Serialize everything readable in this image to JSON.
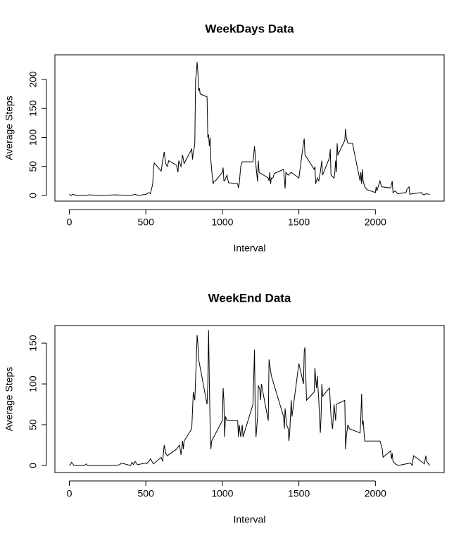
{
  "chart_data": [
    {
      "type": "line",
      "title": "WeekDays Data",
      "x_label": "Interval",
      "y_label": "Average Steps",
      "color": "#000000",
      "x": [
        0,
        10,
        25,
        45,
        100,
        130,
        200,
        300,
        400,
        430,
        450,
        500,
        520,
        530,
        545,
        550,
        555,
        600,
        610,
        620,
        625,
        630,
        640,
        650,
        700,
        710,
        715,
        730,
        740,
        750,
        800,
        805,
        810,
        815,
        820,
        825,
        830,
        835,
        840,
        845,
        850,
        855,
        900,
        905,
        910,
        915,
        920,
        925,
        930,
        935,
        940,
        945,
        955,
        1000,
        1005,
        1010,
        1015,
        1030,
        1040,
        1100,
        1105,
        1110,
        1120,
        1130,
        1200,
        1205,
        1210,
        1215,
        1220,
        1230,
        1235,
        1240,
        1300,
        1305,
        1310,
        1315,
        1320,
        1330,
        1340,
        1400,
        1405,
        1410,
        1415,
        1430,
        1450,
        1500,
        1530,
        1535,
        1540,
        1600,
        1605,
        1610,
        1620,
        1630,
        1640,
        1650,
        1655,
        1700,
        1705,
        1710,
        1730,
        1735,
        1740,
        1745,
        1750,
        1755,
        1800,
        1805,
        1810,
        1820,
        1850,
        1900,
        1905,
        1910,
        1915,
        1920,
        1930,
        1945,
        2000,
        2005,
        2010,
        2030,
        2040,
        2100,
        2110,
        2115,
        2130,
        2145,
        2200,
        2205,
        2220,
        2225,
        2240,
        2300,
        2310,
        2320,
        2330,
        2355
      ],
      "values": [
        2,
        0,
        2,
        0,
        0,
        1,
        0,
        1,
        0,
        2,
        0,
        2,
        5,
        3,
        20,
        45,
        56,
        42,
        60,
        75,
        64,
        55,
        50,
        60,
        52,
        40,
        60,
        50,
        70,
        55,
        80,
        62,
        75,
        80,
        90,
        200,
        210,
        230,
        213,
        180,
        185,
        175,
        170,
        100,
        105,
        85,
        100,
        60,
        45,
        30,
        20,
        25,
        25,
        40,
        48,
        25,
        25,
        35,
        22,
        20,
        13,
        20,
        50,
        58,
        58,
        70,
        85,
        70,
        50,
        24,
        60,
        40,
        30,
        25,
        40,
        20,
        30,
        30,
        38,
        45,
        30,
        12,
        40,
        35,
        40,
        30,
        90,
        98,
        70,
        45,
        50,
        20,
        30,
        25,
        40,
        60,
        35,
        65,
        80,
        35,
        30,
        40,
        60,
        40,
        90,
        70,
        95,
        115,
        100,
        90,
        90,
        25,
        40,
        20,
        45,
        25,
        15,
        10,
        5,
        15,
        8,
        25,
        15,
        13,
        25,
        5,
        8,
        3,
        5,
        10,
        15,
        2,
        3,
        5,
        2,
        1,
        3,
        2
      ],
      "xlim": [
        -94.2,
        2449.2
      ],
      "ylim": [
        -9.7,
        242.4
      ],
      "xticks": [
        0,
        500,
        1000,
        1500,
        2000
      ],
      "yticks": [
        0,
        50,
        100,
        150,
        200
      ]
    },
    {
      "type": "line",
      "title": "WeekEnd Data",
      "x_label": "Interval",
      "y_label": "Average Steps",
      "color": "#000000",
      "x": [
        0,
        10,
        15,
        30,
        100,
        110,
        120,
        200,
        300,
        330,
        340,
        400,
        410,
        420,
        430,
        445,
        500,
        505,
        520,
        530,
        550,
        600,
        610,
        620,
        630,
        640,
        700,
        720,
        730,
        740,
        745,
        750,
        800,
        810,
        820,
        830,
        835,
        840,
        845,
        900,
        905,
        910,
        915,
        920,
        925,
        930,
        1000,
        1005,
        1010,
        1015,
        1020,
        1030,
        1100,
        1105,
        1110,
        1120,
        1130,
        1135,
        1200,
        1205,
        1210,
        1215,
        1220,
        1230,
        1235,
        1245,
        1250,
        1255,
        1300,
        1305,
        1320,
        1400,
        1405,
        1410,
        1420,
        1430,
        1435,
        1440,
        1450,
        1455,
        1500,
        1530,
        1535,
        1540,
        1545,
        1550,
        1600,
        1605,
        1610,
        1615,
        1620,
        1630,
        1640,
        1645,
        1650,
        1655,
        1700,
        1710,
        1720,
        1730,
        1740,
        1745,
        1800,
        1805,
        1810,
        1820,
        1830,
        1900,
        1905,
        1910,
        1915,
        1920,
        1930,
        2000,
        2030,
        2045,
        2050,
        2100,
        2105,
        2110,
        2115,
        2130,
        2150,
        2200,
        2230,
        2240,
        2250,
        2300,
        2320,
        2330,
        2335,
        2355
      ],
      "values": [
        0,
        2,
        4,
        0,
        0,
        2,
        0,
        0,
        0,
        1,
        3,
        0,
        4,
        1,
        5,
        1,
        3,
        2,
        5,
        8,
        2,
        10,
        5,
        25,
        15,
        12,
        20,
        25,
        13,
        30,
        20,
        30,
        45,
        90,
        80,
        130,
        160,
        150,
        130,
        75,
        100,
        166,
        100,
        50,
        20,
        30,
        55,
        95,
        80,
        35,
        60,
        55,
        55,
        35,
        50,
        35,
        50,
        35,
        75,
        108,
        142,
        60,
        35,
        60,
        98,
        93,
        80,
        100,
        55,
        130,
        110,
        60,
        45,
        70,
        50,
        45,
        30,
        40,
        80,
        60,
        125,
        100,
        140,
        145,
        110,
        80,
        90,
        120,
        105,
        95,
        110,
        80,
        40,
        60,
        100,
        85,
        95,
        60,
        45,
        75,
        55,
        75,
        80,
        20,
        35,
        50,
        45,
        40,
        60,
        88,
        50,
        55,
        30,
        30,
        30,
        20,
        10,
        18,
        8,
        15,
        5,
        2,
        0,
        2,
        3,
        0,
        12,
        5,
        2,
        12,
        5,
        0
      ],
      "xlim": [
        -94.2,
        2449.2
      ],
      "ylim": [
        -8.6,
        171.6
      ],
      "xticks": [
        0,
        500,
        1000,
        1500,
        2000
      ],
      "yticks": [
        0,
        50,
        100,
        150
      ]
    }
  ]
}
